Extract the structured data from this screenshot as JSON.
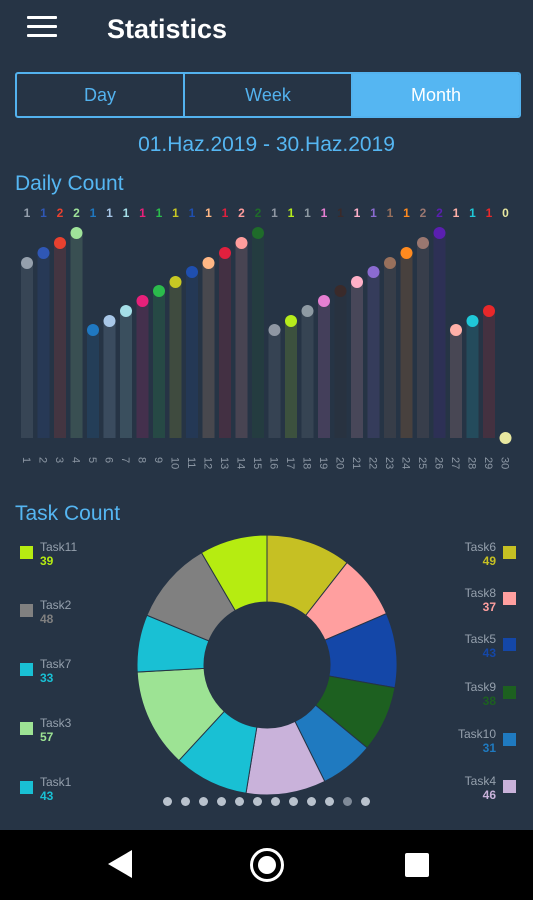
{
  "header": {
    "title": "Statistics",
    "menu_icon": "hamburger-menu-icon"
  },
  "period_tabs": [
    {
      "label": "Day",
      "active": false
    },
    {
      "label": "Week",
      "active": false
    },
    {
      "label": "Month",
      "active": true
    }
  ],
  "date_range": "01.Haz.2019  - 30.Haz.2019",
  "daily_section_title": "Daily Count",
  "task_section_title": "Task Count",
  "chart_data": [
    {
      "type": "bar",
      "title": "Daily Count",
      "categories": [
        "1",
        "2",
        "3",
        "4",
        "5",
        "6",
        "7",
        "8",
        "9",
        "10",
        "11",
        "12",
        "13",
        "14",
        "15",
        "16",
        "17",
        "18",
        "19",
        "20",
        "21",
        "22",
        "23",
        "24",
        "25",
        "26",
        "27",
        "28",
        "29",
        "30"
      ],
      "values": [
        1,
        1,
        2,
        2,
        1,
        1,
        1,
        1,
        1,
        1,
        1,
        1,
        1,
        2,
        2,
        1,
        1,
        1,
        1,
        1,
        1,
        1,
        1,
        1,
        2,
        2,
        1,
        1,
        1,
        0
      ],
      "value_colors": [
        "#95a0ad",
        "#2f57b5",
        "#e8412f",
        "#9fe39a",
        "#1f78c1",
        "#a8c7e8",
        "#a5dfe8",
        "#e8207a",
        "#2bbb4c",
        "#c8c823",
        "#1f4fb0",
        "#ffb785",
        "#e1203e",
        "#ff9d9d",
        "#1f6b2a",
        "#8f97a3",
        "#b6ec1c",
        "#8e9aa3",
        "#e57fd2",
        "#3a2a2a",
        "#ffb0c8",
        "#8b6bd1",
        "#98705c",
        "#ff8a1f",
        "#9a7770",
        "#5a1fb0",
        "#ffb0a8",
        "#1fc8d8",
        "#e8282a",
        "#e8e8a0"
      ],
      "ylim": [
        0,
        2
      ],
      "grid": false,
      "legend": "none"
    },
    {
      "type": "pie",
      "title": "Task Count",
      "slices": [
        {
          "label": "Task6",
          "value": 49,
          "color": "#c6c023"
        },
        {
          "label": "Task8",
          "value": 37,
          "color": "#ff9f9f"
        },
        {
          "label": "Task5",
          "value": 43,
          "color": "#1447a8"
        },
        {
          "label": "Task9",
          "value": 38,
          "color": "#1d6020"
        },
        {
          "label": "Task10",
          "value": 31,
          "color": "#1f7ac0"
        },
        {
          "label": "Task4",
          "value": 46,
          "color": "#c9b2da"
        },
        {
          "label": "Task1",
          "value": 43,
          "color": "#19c0d4"
        },
        {
          "label": "Task3",
          "value": 57,
          "color": "#9de394"
        },
        {
          "label": "Task7",
          "value": 33,
          "color": "#19c0d4"
        },
        {
          "label": "Task2",
          "value": 48,
          "color": "#808080"
        },
        {
          "label": "Task11",
          "value": 39,
          "color": "#b6ec11"
        }
      ],
      "legend_left": [
        {
          "label": "Task11",
          "value": "39",
          "color": "#b6ec11"
        },
        {
          "label": "Task2",
          "value": "48",
          "color": "#808080"
        },
        {
          "label": "Task7",
          "value": "33",
          "color": "#19c0d4"
        },
        {
          "label": "Task3",
          "value": "57",
          "color": "#9de394"
        },
        {
          "label": "Task1",
          "value": "43",
          "color": "#19c0d4"
        }
      ],
      "legend_right": [
        {
          "label": "Task6",
          "value": "49",
          "color": "#c6c023"
        },
        {
          "label": "Task8",
          "value": "37",
          "color": "#ff9f9f"
        },
        {
          "label": "Task5",
          "value": "43",
          "color": "#1447a8"
        },
        {
          "label": "Task9",
          "value": "38",
          "color": "#1d6020"
        },
        {
          "label": "Task10",
          "value": "31",
          "color": "#1f7ac0"
        },
        {
          "label": "Task4",
          "value": "46",
          "color": "#c9b2da"
        }
      ],
      "legend": "left-and-right"
    }
  ],
  "pager": {
    "count": 12,
    "active_index": 10
  },
  "navbar": {
    "back_icon": "back-triangle-icon",
    "home_icon": "home-circle-icon",
    "recent_icon": "recent-apps-square-icon"
  }
}
